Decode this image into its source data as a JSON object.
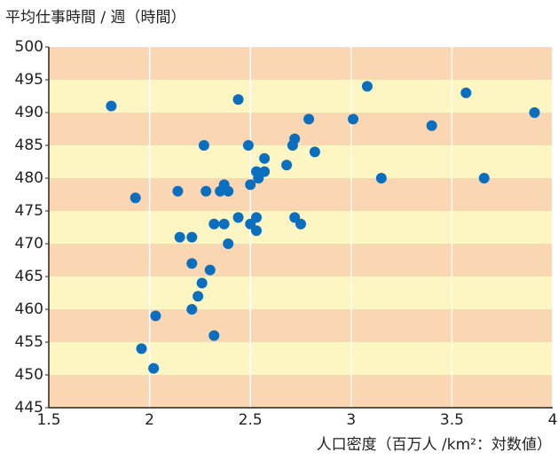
{
  "chart_data": {
    "type": "scatter",
    "title": "平均仕事時間 / 週（時間）",
    "x_label": "人口密度（百万人 /km²：対数値）",
    "color": "#0b6fc0",
    "band_colors": [
      "#fad6b3",
      "#fdf5c2"
    ],
    "grid_color": "#ffffff",
    "xlim": [
      1.5,
      4
    ],
    "xticks": [
      1.5,
      2,
      2.5,
      3,
      3.5,
      4
    ],
    "ylim": [
      445,
      500
    ],
    "yticks": [
      445,
      450,
      455,
      460,
      465,
      470,
      475,
      480,
      485,
      490,
      495,
      500
    ],
    "x": [
      1.81,
      2.44,
      3.08,
      3.57,
      3.91,
      2.79,
      3.01,
      3.4,
      2.27,
      2.49,
      2.72,
      2.71,
      2.57,
      2.82,
      2.68,
      2.53,
      2.57,
      2.54,
      3.15,
      3.66,
      2.37,
      2.5,
      2.14,
      2.28,
      2.35,
      2.39,
      1.93,
      2.44,
      2.53,
      2.72,
      2.32,
      2.37,
      2.5,
      2.75,
      2.53,
      2.15,
      2.21,
      2.39,
      2.21,
      2.3,
      2.26,
      2.24,
      2.21,
      2.03,
      2.32,
      1.96,
      2.02
    ],
    "values": [
      491,
      492,
      494,
      493,
      490,
      489,
      489,
      488,
      485,
      485,
      486,
      485,
      483,
      484,
      482,
      481,
      481,
      480,
      480,
      480,
      479,
      479,
      478,
      478,
      478,
      478,
      477,
      474,
      474,
      474,
      473,
      473,
      473,
      473,
      472,
      471,
      471,
      470,
      467,
      466,
      464,
      462,
      460,
      459,
      456,
      454,
      451
    ]
  }
}
